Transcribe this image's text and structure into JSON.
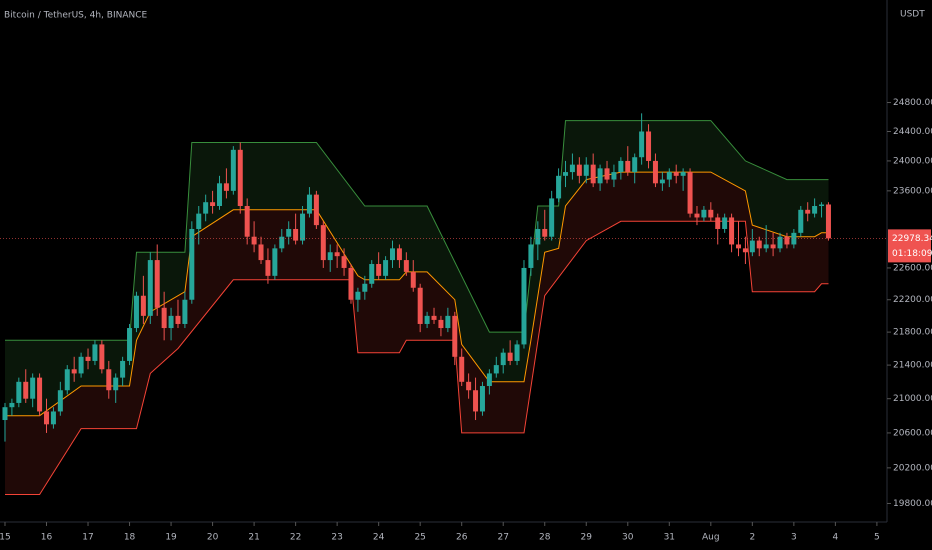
{
  "chart_data": {
    "type": "candlestick",
    "title": "Bitcoin / TetherUS, 4h, BINANCE",
    "currency": "USDT",
    "log_scale": true,
    "up_color": "#26a69a",
    "down_color": "#ef5350",
    "ylim": [
      19595,
      26270
    ],
    "yticks": [
      {
        "value": 19800,
        "label": "19800.00"
      },
      {
        "value": 20200,
        "label": "20200.00"
      },
      {
        "value": 20600,
        "label": "20600.00"
      },
      {
        "value": 21000,
        "label": "21000.00"
      },
      {
        "value": 21400,
        "label": "21400.00"
      },
      {
        "value": 21800,
        "label": "21800.00"
      },
      {
        "value": 22200,
        "label": "22200.00"
      },
      {
        "value": 22600,
        "label": "22600.00"
      },
      {
        "value": 23600,
        "label": "23600.00"
      },
      {
        "value": 24000,
        "label": "24000.00"
      },
      {
        "value": 24400,
        "label": "24400.00"
      },
      {
        "value": 24800,
        "label": "24800.00"
      }
    ],
    "xlim": [
      -0.72,
      127.46
    ],
    "xticks": [
      {
        "value": 0,
        "label": "15"
      },
      {
        "value": 6,
        "label": "16"
      },
      {
        "value": 12,
        "label": "17"
      },
      {
        "value": 18,
        "label": "18"
      },
      {
        "value": 24,
        "label": "19"
      },
      {
        "value": 30,
        "label": "20"
      },
      {
        "value": 36,
        "label": "21"
      },
      {
        "value": 42,
        "label": "22"
      },
      {
        "value": 48,
        "label": "23"
      },
      {
        "value": 54,
        "label": "24"
      },
      {
        "value": 60,
        "label": "25"
      },
      {
        "value": 66,
        "label": "26"
      },
      {
        "value": 72,
        "label": "27"
      },
      {
        "value": 78,
        "label": "28"
      },
      {
        "value": 84,
        "label": "29"
      },
      {
        "value": 90,
        "label": "30"
      },
      {
        "value": 96,
        "label": "31"
      },
      {
        "value": 102,
        "label": "Aug"
      },
      {
        "value": 108,
        "label": "2"
      },
      {
        "value": 114,
        "label": "3"
      },
      {
        "value": 120,
        "label": "4"
      },
      {
        "value": 126,
        "label": "5"
      }
    ],
    "last_price": 22978.34,
    "countdown": "01:18:09",
    "candles": [
      [
        20750,
        20950,
        20500,
        20900
      ],
      [
        20900,
        21000,
        20800,
        20950
      ],
      [
        20950,
        21250,
        20900,
        21200
      ],
      [
        21200,
        21350,
        20950,
        21000
      ],
      [
        21000,
        21300,
        20900,
        21250
      ],
      [
        21250,
        21300,
        20800,
        20850
      ],
      [
        20850,
        21000,
        20600,
        20700
      ],
      [
        20700,
        20900,
        20650,
        20850
      ],
      [
        20850,
        21200,
        20800,
        21100
      ],
      [
        21100,
        21400,
        21050,
        21350
      ],
      [
        21350,
        21500,
        21200,
        21300
      ],
      [
        21300,
        21550,
        21250,
        21500
      ],
      [
        21500,
        21600,
        21350,
        21450
      ],
      [
        21450,
        21700,
        21400,
        21650
      ],
      [
        21650,
        21700,
        21300,
        21350
      ],
      [
        21350,
        21450,
        21000,
        21100
      ],
      [
        21100,
        21300,
        20950,
        21250
      ],
      [
        21250,
        21500,
        21150,
        21450
      ],
      [
        21450,
        21900,
        21400,
        21850
      ],
      [
        21850,
        22300,
        21800,
        22250
      ],
      [
        22250,
        22500,
        21900,
        22000
      ],
      [
        22000,
        22800,
        21900,
        22700
      ],
      [
        22700,
        22900,
        22000,
        22100
      ],
      [
        22100,
        22300,
        21700,
        21850
      ],
      [
        21850,
        22100,
        21700,
        22000
      ],
      [
        22000,
        22200,
        21850,
        21900
      ],
      [
        21900,
        22300,
        21850,
        22200
      ],
      [
        22200,
        23200,
        22150,
        23100
      ],
      [
        23100,
        23400,
        22900,
        23300
      ],
      [
        23300,
        23550,
        23200,
        23450
      ],
      [
        23450,
        23600,
        23300,
        23400
      ],
      [
        23400,
        23800,
        23350,
        23700
      ],
      [
        23700,
        23900,
        23500,
        23600
      ],
      [
        23600,
        24200,
        23550,
        24150
      ],
      [
        24150,
        24250,
        23300,
        23400
      ],
      [
        23400,
        23500,
        22900,
        23000
      ],
      [
        23000,
        23200,
        22800,
        22900
      ],
      [
        22900,
        23000,
        22650,
        22700
      ],
      [
        22700,
        22850,
        22400,
        22500
      ],
      [
        22500,
        22900,
        22450,
        22850
      ],
      [
        22850,
        23100,
        22800,
        23000
      ],
      [
        23000,
        23200,
        22900,
        23100
      ],
      [
        23100,
        23300,
        22900,
        22950
      ],
      [
        22950,
        23400,
        22900,
        23300
      ],
      [
        23300,
        23650,
        23250,
        23550
      ],
      [
        23550,
        23600,
        23100,
        23150
      ],
      [
        23150,
        23200,
        22600,
        22700
      ],
      [
        22700,
        22900,
        22550,
        22800
      ],
      [
        22800,
        22900,
        22600,
        22750
      ],
      [
        22750,
        22850,
        22500,
        22600
      ],
      [
        22600,
        22650,
        22150,
        22200
      ],
      [
        22200,
        22350,
        22050,
        22300
      ],
      [
        22300,
        22500,
        22200,
        22400
      ],
      [
        22400,
        22700,
        22350,
        22650
      ],
      [
        22650,
        22800,
        22450,
        22500
      ],
      [
        22500,
        22750,
        22450,
        22700
      ],
      [
        22700,
        22950,
        22600,
        22850
      ],
      [
        22850,
        22900,
        22600,
        22700
      ],
      [
        22700,
        22800,
        22500,
        22550
      ],
      [
        22550,
        22700,
        22300,
        22350
      ],
      [
        22350,
        22400,
        21800,
        21900
      ],
      [
        21900,
        22050,
        21850,
        22000
      ],
      [
        22000,
        22100,
        21900,
        21950
      ],
      [
        21950,
        22000,
        21750,
        21850
      ],
      [
        21850,
        22100,
        21800,
        22000
      ],
      [
        22000,
        22050,
        21400,
        21500
      ],
      [
        21500,
        21600,
        21150,
        21200
      ],
      [
        21200,
        21300,
        21000,
        21100
      ],
      [
        21100,
        21250,
        20750,
        20850
      ],
      [
        20850,
        21200,
        20800,
        21150
      ],
      [
        21150,
        21350,
        21050,
        21300
      ],
      [
        21300,
        21500,
        21250,
        21400
      ],
      [
        21400,
        21600,
        21300,
        21550
      ],
      [
        21550,
        21700,
        21400,
        21450
      ],
      [
        21450,
        21700,
        21400,
        21650
      ],
      [
        21650,
        22700,
        21600,
        22600
      ],
      [
        22600,
        23000,
        22500,
        22900
      ],
      [
        22900,
        23200,
        22700,
        23100
      ],
      [
        23100,
        23350,
        22950,
        23000
      ],
      [
        23000,
        23600,
        22950,
        23500
      ],
      [
        23500,
        23900,
        23450,
        23800
      ],
      [
        23800,
        24000,
        23650,
        23850
      ],
      [
        23850,
        24100,
        23750,
        23950
      ],
      [
        23950,
        24050,
        23700,
        23800
      ],
      [
        23800,
        24050,
        23700,
        23950
      ],
      [
        23950,
        24100,
        23650,
        23700
      ],
      [
        23700,
        23950,
        23600,
        23900
      ],
      [
        23900,
        24000,
        23700,
        23750
      ],
      [
        23750,
        23950,
        23650,
        23850
      ],
      [
        23850,
        24050,
        23750,
        24000
      ],
      [
        24000,
        24200,
        23800,
        23850
      ],
      [
        23850,
        24100,
        23700,
        24050
      ],
      [
        24050,
        24650,
        23950,
        24400
      ],
      [
        24400,
        24500,
        23900,
        24000
      ],
      [
        24000,
        24100,
        23650,
        23700
      ],
      [
        23700,
        23850,
        23600,
        23750
      ],
      [
        23750,
        23900,
        23650,
        23850
      ],
      [
        23850,
        23950,
        23700,
        23800
      ],
      [
        23800,
        23900,
        23600,
        23850
      ],
      [
        23850,
        23900,
        23250,
        23300
      ],
      [
        23300,
        23400,
        23150,
        23250
      ],
      [
        23250,
        23400,
        23200,
        23350
      ],
      [
        23350,
        23450,
        23200,
        23250
      ],
      [
        23250,
        23300,
        22900,
        23100
      ],
      [
        23100,
        23300,
        23050,
        23250
      ],
      [
        23250,
        23300,
        22800,
        22900
      ],
      [
        22900,
        23200,
        22750,
        22850
      ],
      [
        22850,
        23000,
        22650,
        22800
      ],
      [
        22800,
        23100,
        22750,
        22950
      ],
      [
        22950,
        23000,
        22750,
        22850
      ],
      [
        22850,
        23150,
        22800,
        22900
      ],
      [
        22900,
        23050,
        22750,
        22850
      ],
      [
        22850,
        23050,
        22800,
        23000
      ],
      [
        23000,
        23050,
        22850,
        22900
      ],
      [
        22900,
        23100,
        22850,
        23050
      ],
      [
        23050,
        23400,
        23000,
        23350
      ],
      [
        23350,
        23450,
        23200,
        23300
      ],
      [
        23300,
        23500,
        23250,
        23400
      ],
      [
        23400,
        23450,
        23250,
        23420
      ],
      [
        23420,
        23450,
        22950,
        22978.34
      ]
    ],
    "bands": {
      "upper": {
        "color": "#388e3c",
        "x": [
          0,
          18,
          19,
          26,
          27,
          45,
          52,
          61,
          70,
          75,
          77,
          80,
          81,
          102,
          107,
          113,
          119
        ],
        "values": [
          21700,
          21700,
          22800,
          22800,
          24250,
          24250,
          23400,
          23400,
          21800,
          21800,
          23400,
          23400,
          24550,
          24550,
          24000,
          23750,
          23750
        ]
      },
      "basis": {
        "color": "#ff9800",
        "x": [
          0,
          5,
          11,
          18,
          19,
          21,
          26,
          27,
          33,
          45,
          51,
          52,
          57,
          58,
          61,
          65,
          66,
          70,
          75,
          76,
          78,
          80,
          81,
          84,
          89,
          102,
          107,
          108,
          113,
          117,
          118,
          119
        ],
        "values": [
          20800,
          20800,
          21150,
          21150,
          21700,
          22050,
          22300,
          23000,
          23350,
          23350,
          22500,
          22450,
          22450,
          22550,
          22550,
          22200,
          21650,
          21200,
          21200,
          21700,
          22800,
          22850,
          23400,
          23750,
          23850,
          23850,
          23600,
          23150,
          23000,
          23000,
          23050,
          23050
        ]
      },
      "lower": {
        "color": "#f44336",
        "x": [
          0,
          5,
          11,
          19,
          21,
          25,
          33,
          50,
          51,
          57,
          58,
          65,
          66,
          75,
          78,
          84,
          89,
          107,
          108,
          117,
          118,
          119
        ],
        "values": [
          19900,
          19900,
          20650,
          20650,
          21300,
          21600,
          22450,
          22450,
          21550,
          21550,
          21700,
          21700,
          20600,
          20600,
          22250,
          22950,
          23200,
          23200,
          22300,
          22300,
          22400,
          22400
        ]
      }
    }
  }
}
